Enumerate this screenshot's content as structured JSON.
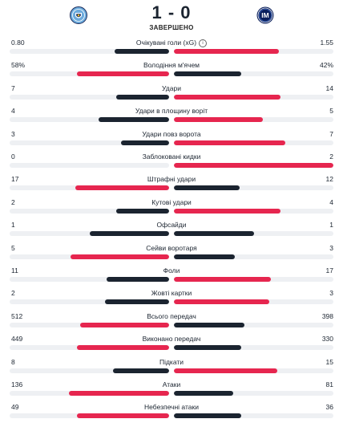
{
  "match": {
    "home_team_icon": "manchester-city-crest-icon",
    "away_team_icon": "inter-crest-icon",
    "score": "1 - 0",
    "status": "ЗАВЕРШЕНО"
  },
  "colors": {
    "leader": "#e6264f",
    "other": "#1b2430",
    "track": "#eef0f3"
  },
  "stats": [
    {
      "label": "Очікувані голи (xG)",
      "home": "0.80",
      "away": "1.55",
      "home_share": 0.34,
      "away_share": 0.66,
      "info_icon": "info-icon"
    },
    {
      "label": "Володіння м'ячем",
      "home": "58%",
      "away": "42%",
      "home_share": 0.58,
      "away_share": 0.42
    },
    {
      "label": "Удари",
      "home": "7",
      "away": "14",
      "home_share": 0.33,
      "away_share": 0.67
    },
    {
      "label": "Удари в площину воріт",
      "home": "4",
      "away": "5",
      "home_share": 0.44,
      "away_share": 0.56
    },
    {
      "label": "Удари повз ворота",
      "home": "3",
      "away": "7",
      "home_share": 0.3,
      "away_share": 0.7
    },
    {
      "label": "Заблоковані кидки",
      "home": "0",
      "away": "2",
      "home_share": 0.0,
      "away_share": 1.0
    },
    {
      "label": "Штрафні удари",
      "home": "17",
      "away": "12",
      "home_share": 0.59,
      "away_share": 0.41
    },
    {
      "label": "Кутові удари",
      "home": "2",
      "away": "4",
      "home_share": 0.33,
      "away_share": 0.67
    },
    {
      "label": "Офсайди",
      "home": "1",
      "away": "1",
      "home_share": 0.5,
      "away_share": 0.5
    },
    {
      "label": "Сейви воротаря",
      "home": "5",
      "away": "3",
      "home_share": 0.62,
      "away_share": 0.38
    },
    {
      "label": "Фоли",
      "home": "11",
      "away": "17",
      "home_share": 0.39,
      "away_share": 0.61
    },
    {
      "label": "Жовті картки",
      "home": "2",
      "away": "3",
      "home_share": 0.4,
      "away_share": 0.6
    },
    {
      "label": "Всього передач",
      "home": "512",
      "away": "398",
      "home_share": 0.56,
      "away_share": 0.44
    },
    {
      "label": "Виконано передач",
      "home": "449",
      "away": "330",
      "home_share": 0.58,
      "away_share": 0.42
    },
    {
      "label": "Підкати",
      "home": "8",
      "away": "15",
      "home_share": 0.35,
      "away_share": 0.65
    },
    {
      "label": "Атаки",
      "home": "136",
      "away": "81",
      "home_share": 0.63,
      "away_share": 0.37
    },
    {
      "label": "Небезпечні атаки",
      "home": "49",
      "away": "36",
      "home_share": 0.58,
      "away_share": 0.42
    }
  ]
}
